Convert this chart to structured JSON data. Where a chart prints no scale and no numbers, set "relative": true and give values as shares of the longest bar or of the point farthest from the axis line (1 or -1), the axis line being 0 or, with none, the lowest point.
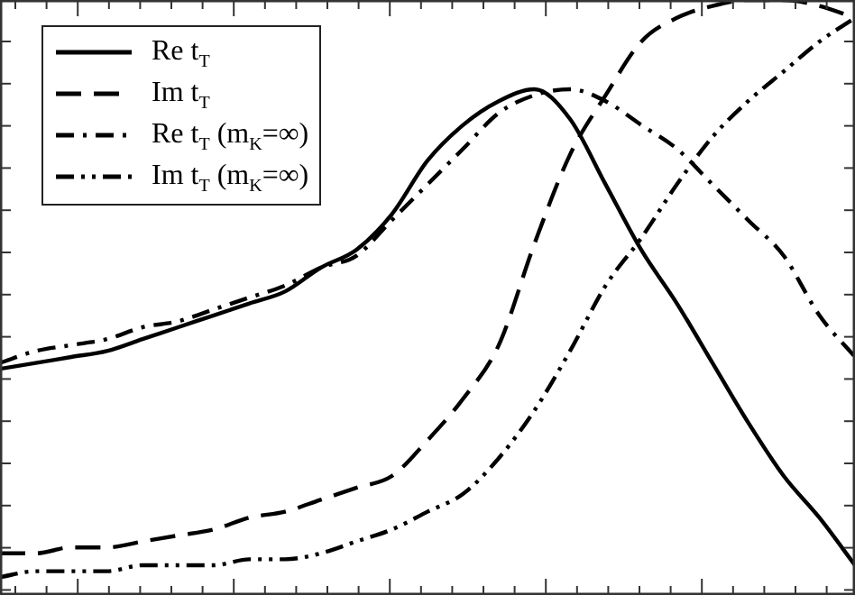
{
  "chart_data": {
    "type": "line",
    "relative": true,
    "tick_labels": false,
    "legend": "top left",
    "marker": "none",
    "categories": [
      null,
      null,
      null,
      null,
      null,
      null,
      null,
      null,
      null,
      null,
      null,
      null,
      null,
      null,
      null,
      null,
      null,
      null,
      null,
      null,
      null,
      null,
      null,
      null,
      null
    ],
    "series": [
      {
        "name": "Re t$_{T}$",
        "color": "#000000",
        "line_style": "solid",
        "values": [
          0.38,
          0.39,
          0.4,
          0.41,
          0.43,
          0.45,
          0.47,
          0.49,
          0.51,
          0.55,
          0.58,
          0.64,
          0.73,
          0.79,
          0.83,
          0.85,
          0.8,
          0.69,
          0.58,
          0.49,
          0.39,
          0.29,
          0.2,
          0.13,
          0.05
        ]
      },
      {
        "name": "Im t$_{T}$",
        "color": "#000000",
        "line_style": "dashed",
        "values": [
          0.07,
          0.07,
          0.08,
          0.08,
          0.09,
          0.1,
          0.11,
          0.13,
          0.14,
          0.16,
          0.18,
          0.2,
          0.26,
          0.33,
          0.42,
          0.59,
          0.74,
          0.84,
          0.93,
          0.97,
          0.99,
          1.0,
          1.0,
          0.99,
          0.97
        ]
      },
      {
        "name": "Re t$_{T}$ (m$_{K}$=∞)",
        "color": "#000000",
        "line_style": "dashdot",
        "values": [
          0.39,
          0.41,
          0.42,
          0.43,
          0.45,
          0.46,
          0.48,
          0.5,
          0.52,
          0.55,
          0.57,
          0.63,
          0.69,
          0.75,
          0.81,
          0.84,
          0.85,
          0.83,
          0.79,
          0.75,
          0.69,
          0.63,
          0.57,
          0.47,
          0.4
        ]
      },
      {
        "name": "Im t$_{T}$ (m$_{K}$=∞)",
        "color": "#000000",
        "line_style": "dashdotdot",
        "values": [
          0.03,
          0.04,
          0.04,
          0.04,
          0.05,
          0.05,
          0.05,
          0.06,
          0.06,
          0.07,
          0.09,
          0.11,
          0.14,
          0.17,
          0.23,
          0.31,
          0.41,
          0.52,
          0.6,
          0.69,
          0.77,
          0.83,
          0.88,
          0.93,
          0.97
        ]
      }
    ]
  }
}
